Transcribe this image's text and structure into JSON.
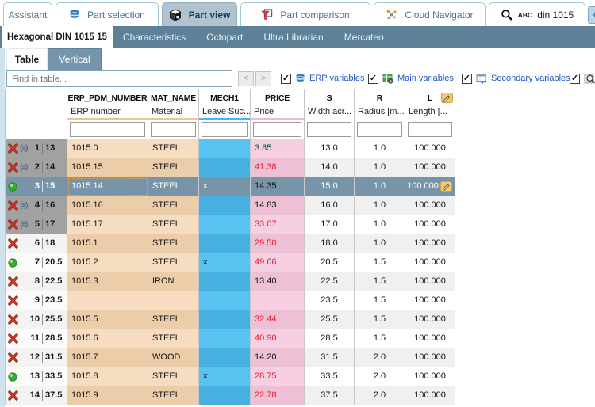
{
  "app": {
    "top_tabs": [
      {
        "label": "Assistant",
        "active": false
      },
      {
        "label": "Part selection",
        "active": false
      },
      {
        "label": "Part view",
        "active": true
      },
      {
        "label": "Part comparison",
        "active": false
      },
      {
        "label": "Cloud Navigator",
        "active": false
      }
    ],
    "search_tab": {
      "abc": "ABC",
      "value": "din 1015"
    },
    "plus_label": "+"
  },
  "subtab_bar": {
    "active": "Hexagonal DIN 1015 15",
    "items": [
      "Characteristics",
      "Octopart",
      "Ultra Librarian",
      "Mercateo"
    ]
  },
  "view_tabs": {
    "active": "Table",
    "other": "Vertical"
  },
  "toolbar": {
    "find_placeholder": "Find in table...",
    "prev_label": "<",
    "next_label": ">",
    "check_glyph": "✓",
    "toggles": [
      {
        "label": "ERP variables",
        "checked": true,
        "icon": "erp-database-icon"
      },
      {
        "label": "Main variables",
        "checked": true,
        "icon": "main-variables-icon"
      },
      {
        "label": "Secondary variables",
        "checked": true,
        "icon": "secondary-variables-icon"
      },
      {
        "label": "",
        "checked": true,
        "icon": "preview-icon"
      }
    ]
  },
  "table": {
    "columns": [
      {
        "key": "ERP_PDM_NUMBER",
        "desc": "ERP number",
        "bar": "#f0c38c",
        "editable": false
      },
      {
        "key": "MAT_NAME",
        "desc": "Material",
        "bar": "#f0c38c",
        "editable": false
      },
      {
        "key": "MECH1",
        "desc": "Leave Suc...",
        "bar": "#3ebbf0",
        "editable": false
      },
      {
        "key": "PRICE",
        "desc": "Price",
        "bar": "#f7b6d8",
        "editable": false
      },
      {
        "key": "S",
        "desc": "Width acr...",
        "bar": "",
        "editable": false
      },
      {
        "key": "R",
        "desc": "Radius [m...",
        "bar": "",
        "editable": false
      },
      {
        "key": "L",
        "desc": "Length [...",
        "bar": "",
        "editable": true
      }
    ],
    "group_glyph": "(≡)",
    "rows": [
      {
        "num": "1",
        "key": "13",
        "status": "excluded",
        "grouped": true,
        "gray_head": true,
        "selected": false,
        "erp": "1015.0",
        "mat": "STEEL",
        "mech1": "",
        "price": "3.85",
        "price_color": "green",
        "s": "13.0",
        "r": "1.0",
        "l": "100.000"
      },
      {
        "num": "2",
        "key": "14",
        "status": "excluded",
        "grouped": true,
        "gray_head": true,
        "selected": false,
        "erp": "1015.15",
        "mat": "STEEL",
        "mech1": "",
        "price": "41.38",
        "price_color": "red",
        "s": "14.0",
        "r": "1.0",
        "l": "100.000"
      },
      {
        "num": "3",
        "key": "15",
        "status": "ok",
        "grouped": false,
        "gray_head": false,
        "selected": true,
        "erp": "1015.14",
        "mat": "STEEL",
        "mech1": "x",
        "price": "14.35",
        "price_color": "black",
        "s": "15.0",
        "r": "1.0",
        "l": "100.000"
      },
      {
        "num": "4",
        "key": "16",
        "status": "excluded",
        "grouped": true,
        "gray_head": true,
        "selected": false,
        "erp": "1015.16",
        "mat": "STEEL",
        "mech1": "",
        "price": "14.83",
        "price_color": "black",
        "s": "16.0",
        "r": "1.0",
        "l": "100.000"
      },
      {
        "num": "5",
        "key": "17",
        "status": "excluded",
        "grouped": true,
        "gray_head": true,
        "selected": false,
        "erp": "1015.17",
        "mat": "STEEL",
        "mech1": "",
        "price": "33.07",
        "price_color": "red",
        "s": "17.0",
        "r": "1.0",
        "l": "100.000"
      },
      {
        "num": "6",
        "key": "18",
        "status": "excluded",
        "grouped": false,
        "gray_head": false,
        "selected": false,
        "erp": "1015.1",
        "mat": "STEEL",
        "mech1": "",
        "price": "29.50",
        "price_color": "red",
        "s": "18.0",
        "r": "1.0",
        "l": "100.000"
      },
      {
        "num": "7",
        "key": "20.5",
        "status": "ok",
        "grouped": false,
        "gray_head": false,
        "selected": false,
        "erp": "1015.2",
        "mat": "STEEL",
        "mech1": "x",
        "price": "49.66",
        "price_color": "red",
        "s": "20.5",
        "r": "1.5",
        "l": "100.000"
      },
      {
        "num": "8",
        "key": "22.5",
        "status": "excluded",
        "grouped": false,
        "gray_head": false,
        "selected": false,
        "erp": "1015.3",
        "mat": "IRON",
        "mech1": "",
        "price": "13.40",
        "price_color": "black",
        "s": "22.5",
        "r": "1.5",
        "l": "100.000"
      },
      {
        "num": "9",
        "key": "23.5",
        "status": "excluded",
        "grouped": false,
        "gray_head": false,
        "selected": false,
        "erp": "",
        "mat": "",
        "mech1": "",
        "price": "",
        "price_color": "black",
        "s": "23.5",
        "r": "1.5",
        "l": "100.000"
      },
      {
        "num": "10",
        "key": "25.5",
        "status": "excluded",
        "grouped": false,
        "gray_head": false,
        "selected": false,
        "erp": "1015.5",
        "mat": "STEEL",
        "mech1": "",
        "price": "32.44",
        "price_color": "red",
        "s": "25.5",
        "r": "1.5",
        "l": "100.000"
      },
      {
        "num": "11",
        "key": "28.5",
        "status": "excluded",
        "grouped": false,
        "gray_head": false,
        "selected": false,
        "erp": "1015.6",
        "mat": "STEEL",
        "mech1": "",
        "price": "40.90",
        "price_color": "red",
        "s": "28.5",
        "r": "1.5",
        "l": "100.000"
      },
      {
        "num": "12",
        "key": "31.5",
        "status": "excluded",
        "grouped": false,
        "gray_head": false,
        "selected": false,
        "erp": "1015.7",
        "mat": "WOOD",
        "mech1": "",
        "price": "14.20",
        "price_color": "black",
        "s": "31.5",
        "r": "2.0",
        "l": "100.000"
      },
      {
        "num": "13",
        "key": "33.5",
        "status": "ok",
        "grouped": false,
        "gray_head": false,
        "selected": false,
        "erp": "1015.8",
        "mat": "STEEL",
        "mech1": "x",
        "price": "28.75",
        "price_color": "red",
        "s": "33.5",
        "r": "2.0",
        "l": "100.000"
      },
      {
        "num": "14",
        "key": "37.5",
        "status": "excluded",
        "grouped": false,
        "gray_head": false,
        "selected": false,
        "erp": "1015.9",
        "mat": "STEEL",
        "mech1": "",
        "price": "22.78",
        "price_color": "red",
        "s": "37.5",
        "r": "2.0",
        "l": "100.000"
      }
    ]
  },
  "colors": {
    "subbar_bg": "#5e8197",
    "active_tab_bg": "#b2c3d0",
    "selected_row_bg": "#7794a8",
    "orange_light": "#f6dcc0",
    "orange_dark": "#ebcda9",
    "blue_light": "#58c2f0",
    "blue_dark": "#47b0e0",
    "pink_light": "#f7cfe3",
    "pink_dark": "#edc0d6",
    "gray_row_head": "#a1a1a1",
    "price_text": {
      "red": "#e31b2c",
      "black": "#111111",
      "green": "#14553a"
    }
  }
}
